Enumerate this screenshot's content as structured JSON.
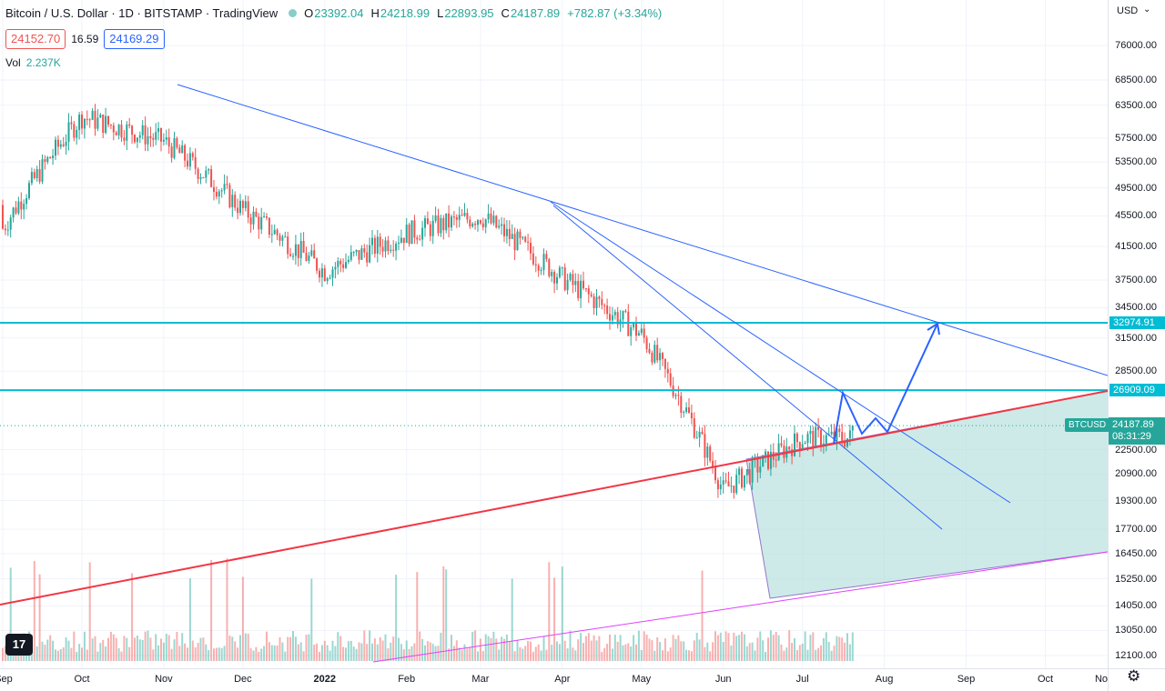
{
  "header": {
    "title": "Bitcoin / U.S. Dollar · 1D · BITSTAMP · TradingView",
    "ohlc": [
      {
        "label": "O",
        "value": "23392.04"
      },
      {
        "label": "H",
        "value": "24218.99"
      },
      {
        "label": "L",
        "value": "22893.95"
      },
      {
        "label": "C",
        "value": "24187.89"
      }
    ],
    "change": "+782.87 (+3.34%)",
    "sell_price": "24152.70",
    "spread": "16.59",
    "buy_price": "24169.29",
    "volume_label": "Vol",
    "volume_value": "2.237K"
  },
  "axis": {
    "currency": "USD",
    "y_ticks": [
      "76000.00",
      "68500.00",
      "63500.00",
      "57500.00",
      "53500.00",
      "49500.00",
      "45500.00",
      "41500.00",
      "37500.00",
      "34500.00",
      "31500.00",
      "28500.00",
      "22500.00",
      "20900.00",
      "19300.00",
      "17700.00",
      "16450.00",
      "15250.00",
      "14050.00",
      "13050.00",
      "12100.00"
    ],
    "x_ticks": [
      {
        "label": "Sep",
        "bold": false
      },
      {
        "label": "Oct",
        "bold": false
      },
      {
        "label": "Nov",
        "bold": false
      },
      {
        "label": "Dec",
        "bold": false
      },
      {
        "label": "2022",
        "bold": true
      },
      {
        "label": "Feb",
        "bold": false
      },
      {
        "label": "Mar",
        "bold": false
      },
      {
        "label": "Apr",
        "bold": false
      },
      {
        "label": "May",
        "bold": false
      },
      {
        "label": "Jun",
        "bold": false
      },
      {
        "label": "Jul",
        "bold": false
      },
      {
        "label": "Aug",
        "bold": false
      },
      {
        "label": "Sep",
        "bold": false
      },
      {
        "label": "Oct",
        "bold": false
      },
      {
        "label": "No",
        "bold": false
      }
    ]
  },
  "price_badges": {
    "level_upper": "32974.91",
    "level_lower": "26909.09",
    "symbol": "BTCUSD",
    "last_price": "24187.89",
    "countdown": "08:31:29"
  },
  "colors": {
    "up": "#26a69a",
    "down": "#ef5350",
    "trendline": "#2962ff",
    "horizontal_level": "#00bcd4",
    "support_line": "#f23645",
    "channel_fill": "#b2dfdb"
  },
  "chart_data": {
    "type": "candlestick",
    "series_name": "BTCUSD",
    "timeframe": "1D",
    "exchange": "BITSTAMP",
    "x_range": [
      "2021-09-01",
      "2022-11-01"
    ],
    "y_range": [
      12100,
      76000
    ],
    "y_scale": "log",
    "last_close": 24187.89,
    "horizontal_levels": [
      32974.91,
      26909.09
    ],
    "monthly_closes": [
      {
        "x": "2021-09",
        "close": 43800
      },
      {
        "x": "2021-10",
        "close": 61300
      },
      {
        "x": "2021-11",
        "close": 57000
      },
      {
        "x": "2021-12",
        "close": 46300
      },
      {
        "x": "2022-01",
        "close": 38500
      },
      {
        "x": "2022-02",
        "close": 43200
      },
      {
        "x": "2022-03",
        "close": 45500
      },
      {
        "x": "2022-04",
        "close": 37700
      },
      {
        "x": "2022-05",
        "close": 31800
      },
      {
        "x": "2022-06",
        "close": 19900
      },
      {
        "x": "2022-07",
        "close": 23300
      }
    ],
    "grid": true,
    "legend": "top-left"
  }
}
